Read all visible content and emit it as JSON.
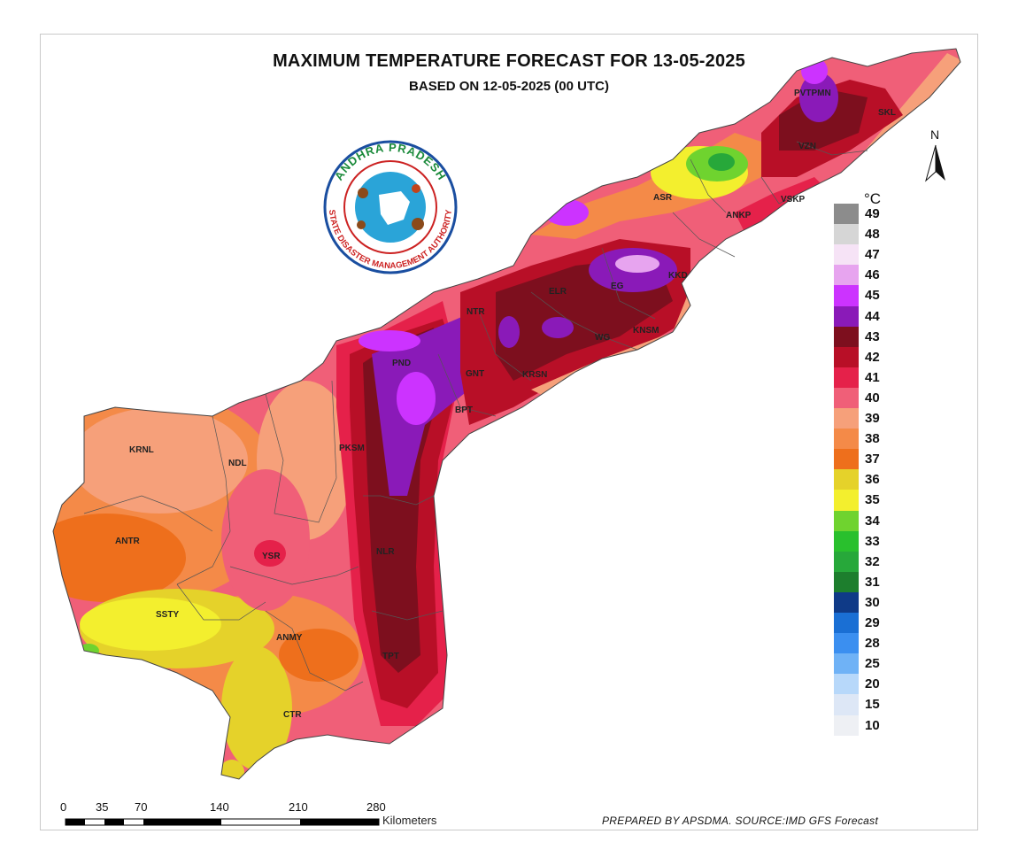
{
  "title": "MAXIMUM TEMPERATURE FORECAST FOR 13-05-2025",
  "subtitle": "BASED ON 12-05-2025 (00 UTC)",
  "logo": {
    "top_text": "ANDHRA PRADESH",
    "bottom_text": "STATE DISASTER MANAGEMENT AUTHORITY"
  },
  "north_arrow": "N",
  "legend": {
    "unit": "°C",
    "entries": [
      {
        "label": "49",
        "color": "#8c8c8c"
      },
      {
        "label": "48",
        "color": "#d6d6d6"
      },
      {
        "label": "47",
        "color": "#f6e3f6"
      },
      {
        "label": "46",
        "color": "#e7a4ef"
      },
      {
        "label": "45",
        "color": "#cc33ff"
      },
      {
        "label": "44",
        "color": "#8a1ab8"
      },
      {
        "label": "43",
        "color": "#7d0f1e"
      },
      {
        "label": "42",
        "color": "#b80f27"
      },
      {
        "label": "41",
        "color": "#e5214a"
      },
      {
        "label": "40",
        "color": "#f05f78"
      },
      {
        "label": "39",
        "color": "#f6a07a"
      },
      {
        "label": "38",
        "color": "#f48a48"
      },
      {
        "label": "37",
        "color": "#ee6f1c"
      },
      {
        "label": "36",
        "color": "#e5d22a"
      },
      {
        "label": "35",
        "color": "#f3ef2e"
      },
      {
        "label": "34",
        "color": "#6fd32f"
      },
      {
        "label": "33",
        "color": "#29c02d"
      },
      {
        "label": "32",
        "color": "#27a83a"
      },
      {
        "label": "31",
        "color": "#1d7e2d"
      },
      {
        "label": "30",
        "color": "#0f3a87"
      },
      {
        "label": "29",
        "color": "#1a6fd4"
      },
      {
        "label": "28",
        "color": "#3b8ff0"
      },
      {
        "label": "25",
        "color": "#6fb2f6"
      },
      {
        "label": "20",
        "color": "#b7d8fa"
      },
      {
        "label": "15",
        "color": "#dde7f6"
      },
      {
        "label": "10",
        "color": "#eef0f4"
      }
    ]
  },
  "districts": [
    "PVTPMN",
    "SKL",
    "VZN",
    "ASR",
    "ANKP",
    "VSKP",
    "KKD",
    "EG",
    "ELR",
    "NTR",
    "WG",
    "KNSM",
    "PND",
    "GNT",
    "KRSN",
    "BPT",
    "PKSM",
    "KRNL",
    "NDL",
    "ANTR",
    "YSR",
    "NLR",
    "SSTY",
    "ANMY",
    "TPT",
    "CTR"
  ],
  "scale_bar": {
    "ticks": [
      "0",
      "35",
      "70",
      "140",
      "210",
      "280"
    ],
    "unit": "Kilometers"
  },
  "credit": "PREPARED BY APSDMA. SOURCE:IMD GFS Forecast"
}
